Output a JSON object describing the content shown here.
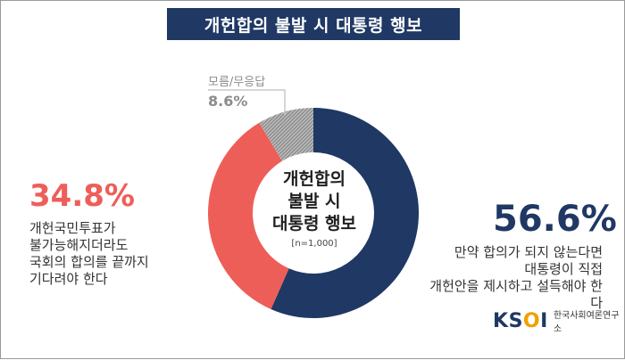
{
  "chart_data": {
    "type": "pie",
    "title": "개헌합의 불발 시 대통령 행보",
    "center_title_lines": [
      "개헌합의",
      "불발 시",
      "대통령 행보"
    ],
    "sample_note": "[n=1,000]",
    "slices": [
      {
        "label_lines": [
          "만약 합의가 되지 않는다면",
          "대통령이 직접",
          "개헌안을 제시하고 설득해야 한다"
        ],
        "value": 56.6,
        "value_label": "56.6%",
        "color": "#1f3864"
      },
      {
        "label_lines": [
          "개헌국민투표가",
          "불가능해지더라도",
          "국회의 합의를 끝까지",
          "기다려야 한다"
        ],
        "value": 34.8,
        "value_label": "34.8%",
        "color": "#ee5e58"
      },
      {
        "label_lines": [
          "모름/무응답"
        ],
        "value": 8.6,
        "value_label": "8.6%",
        "color": "#a9a9a9",
        "pattern": "hatched"
      }
    ]
  },
  "logo": {
    "mark": "KSOI",
    "name": "한국사회여론연구소"
  }
}
